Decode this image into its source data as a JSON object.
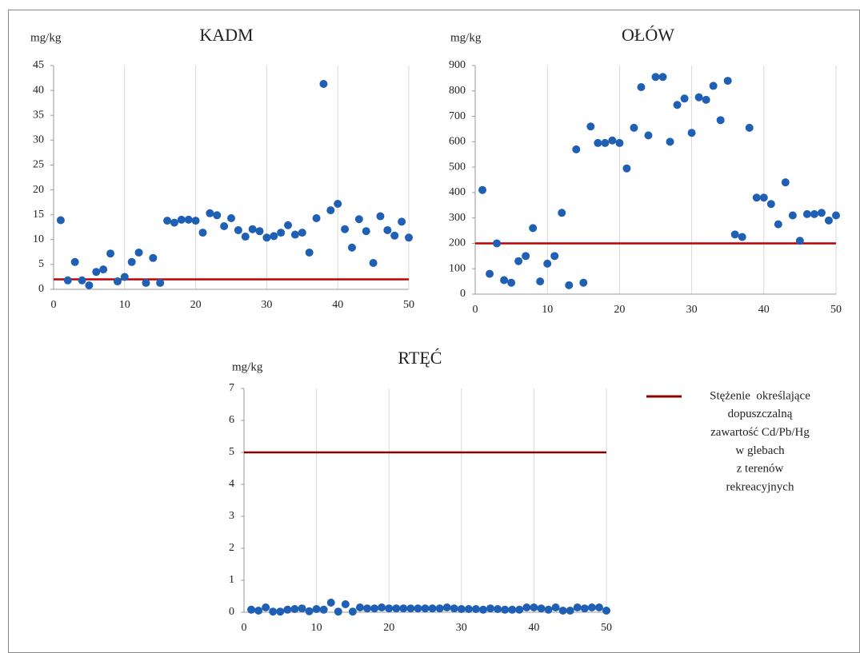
{
  "chart_data": [
    {
      "type": "scatter",
      "title": "KADM",
      "ylabel": "mg/kg",
      "xlim": [
        0,
        50
      ],
      "xticks": [
        0,
        10,
        20,
        30,
        40,
        50
      ],
      "ylim": [
        0,
        45
      ],
      "yticks": [
        0,
        5,
        10,
        15,
        20,
        25,
        30,
        35,
        40,
        45
      ],
      "grid": "x",
      "series": [
        {
          "color": "#1f5fb4",
          "x": [
            1,
            2,
            3,
            4,
            5,
            6,
            7,
            8,
            9,
            10,
            11,
            12,
            13,
            14,
            15,
            16,
            17,
            18,
            19,
            20,
            21,
            22,
            23,
            24,
            25,
            26,
            27,
            28,
            29,
            30,
            31,
            32,
            33,
            34,
            35,
            36,
            37,
            38,
            39,
            40,
            41,
            42,
            43,
            44,
            45,
            46,
            47,
            48,
            49,
            50
          ],
          "values": [
            13.9,
            1.8,
            5.5,
            1.8,
            0.8,
            3.5,
            4,
            7.2,
            1.6,
            2.5,
            5.5,
            7.4,
            1.3,
            6.3,
            1.3,
            13.8,
            13.4,
            14,
            14,
            13.8,
            11.4,
            15.3,
            14.9,
            12.7,
            14.3,
            11.9,
            10.6,
            12.1,
            11.7,
            10.4,
            10.7,
            11.4,
            12.9,
            11,
            11.4,
            7.4,
            14.3,
            41.3,
            15.9,
            17.2,
            12.1,
            8.4,
            14.1,
            11.7,
            5.3,
            14.7,
            11.9,
            10.8,
            13.6,
            10.4
          ]
        }
      ],
      "threshold": {
        "value": 2,
        "color": "#c00000"
      }
    },
    {
      "type": "scatter",
      "title": "OŁÓW",
      "ylabel": "mg/kg",
      "xlim": [
        0,
        50
      ],
      "xticks": [
        0,
        10,
        20,
        30,
        40,
        50
      ],
      "ylim": [
        0,
        900
      ],
      "yticks": [
        0,
        100,
        200,
        300,
        400,
        500,
        600,
        700,
        800,
        900
      ],
      "grid": "x",
      "series": [
        {
          "color": "#1f5fb4",
          "x": [
            1,
            2,
            3,
            4,
            5,
            6,
            7,
            8,
            9,
            10,
            11,
            12,
            13,
            14,
            15,
            16,
            17,
            18,
            19,
            20,
            21,
            22,
            23,
            24,
            25,
            26,
            27,
            28,
            29,
            30,
            31,
            32,
            33,
            34,
            35,
            36,
            37,
            38,
            39,
            40,
            41,
            42,
            43,
            44,
            45,
            46,
            47,
            48,
            49,
            50
          ],
          "values": [
            410,
            80,
            200,
            55,
            45,
            130,
            150,
            260,
            50,
            120,
            150,
            320,
            35,
            570,
            45,
            660,
            595,
            595,
            605,
            595,
            495,
            655,
            815,
            625,
            855,
            855,
            600,
            745,
            770,
            635,
            775,
            765,
            820,
            685,
            840,
            235,
            225,
            655,
            380,
            380,
            355,
            275,
            440,
            310,
            210,
            315,
            315,
            320,
            290,
            310
          ]
        }
      ],
      "threshold": {
        "value": 200,
        "color": "#c00000"
      }
    },
    {
      "type": "scatter",
      "title": "RTĘĆ",
      "ylabel": "mg/kg",
      "xlim": [
        0,
        50
      ],
      "xticks": [
        0,
        10,
        20,
        30,
        40,
        50
      ],
      "ylim": [
        0,
        7
      ],
      "yticks": [
        0,
        1,
        2,
        3,
        4,
        5,
        6,
        7
      ],
      "grid": "x",
      "series": [
        {
          "color": "#1f5fb4",
          "x": [
            1,
            2,
            3,
            4,
            5,
            6,
            7,
            8,
            9,
            10,
            11,
            12,
            13,
            14,
            15,
            16,
            17,
            18,
            19,
            20,
            21,
            22,
            23,
            24,
            25,
            26,
            27,
            28,
            29,
            30,
            31,
            32,
            33,
            34,
            35,
            36,
            37,
            38,
            39,
            40,
            41,
            42,
            43,
            44,
            45,
            46,
            47,
            48,
            49,
            50
          ],
          "values": [
            0.08,
            0.05,
            0.15,
            0.02,
            0.02,
            0.08,
            0.1,
            0.12,
            0.03,
            0.1,
            0.08,
            0.3,
            0.02,
            0.25,
            0.02,
            0.15,
            0.12,
            0.12,
            0.15,
            0.12,
            0.12,
            0.12,
            0.12,
            0.12,
            0.12,
            0.12,
            0.12,
            0.15,
            0.12,
            0.1,
            0.1,
            0.1,
            0.08,
            0.12,
            0.1,
            0.08,
            0.08,
            0.08,
            0.15,
            0.15,
            0.12,
            0.08,
            0.15,
            0.05,
            0.05,
            0.15,
            0.12,
            0.15,
            0.15,
            0.05
          ]
        }
      ],
      "threshold": {
        "value": 5,
        "color": "#8b0000"
      },
      "legend": {
        "lines": [
          "Stężenie  określające",
          "dopuszczalną",
          "zawartość Cd/Pb/Hg",
          "w glebach",
          "z terenów",
          "rekreacyjnych"
        ]
      }
    }
  ]
}
